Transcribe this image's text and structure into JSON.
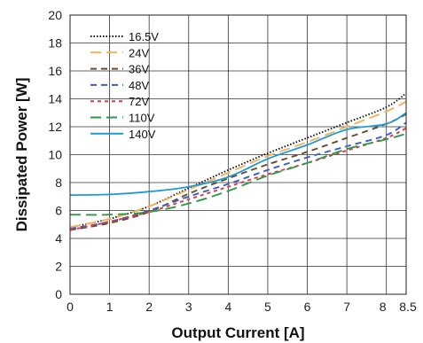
{
  "chart_data": {
    "type": "line",
    "xlabel": "Output Current [A]",
    "ylabel": "Dissipated Power [W]",
    "xlim": [
      0,
      8.5
    ],
    "ylim": [
      0,
      20
    ],
    "x_ticks": [
      {
        "value": 0,
        "label": "0"
      },
      {
        "value": 1,
        "label": "1"
      },
      {
        "value": 2,
        "label": "2"
      },
      {
        "value": 3,
        "label": "3"
      },
      {
        "value": 4,
        "label": "4"
      },
      {
        "value": 5,
        "label": "5"
      },
      {
        "value": 6,
        "label": "6"
      },
      {
        "value": 7,
        "label": "7"
      },
      {
        "value": 8,
        "label": "8"
      },
      {
        "value": 8.5,
        "label": "8.5"
      }
    ],
    "y_ticks": [
      0,
      2,
      4,
      6,
      8,
      10,
      12,
      14,
      16,
      18,
      20
    ],
    "grid": true,
    "legend_position": "top-left",
    "series": [
      {
        "name": "16.5V",
        "color": "#111111",
        "dash": "dotted",
        "x": [
          0,
          1,
          2,
          3,
          4,
          5,
          6,
          7,
          8,
          8.5
        ],
        "y": [
          4.8,
          5.4,
          6.3,
          7.6,
          8.9,
          10.1,
          11.2,
          12.3,
          13.4,
          14.4
        ]
      },
      {
        "name": "24V",
        "color": "#f2b35a",
        "dash": "long-dash",
        "x": [
          0,
          1,
          2,
          3,
          4,
          5,
          6,
          7,
          8,
          8.5
        ],
        "y": [
          4.8,
          5.4,
          6.3,
          7.5,
          8.7,
          9.9,
          10.9,
          12.0,
          13.1,
          13.8
        ]
      },
      {
        "name": "36V",
        "color": "#6b4a2b",
        "dash": "dash",
        "x": [
          0,
          1,
          2,
          3,
          4,
          5,
          6,
          7,
          8,
          8.5
        ],
        "y": [
          4.6,
          5.1,
          5.9,
          7.2,
          8.3,
          9.3,
          10.2,
          11.2,
          12.2,
          12.9
        ]
      },
      {
        "name": "48V",
        "color": "#3a5fc4",
        "dash": "dash",
        "x": [
          0,
          1,
          2,
          3,
          4,
          5,
          6,
          7,
          8,
          8.5
        ],
        "y": [
          4.7,
          5.2,
          6.0,
          7.0,
          7.9,
          8.9,
          9.8,
          10.6,
          11.4,
          12.3
        ]
      },
      {
        "name": "72V",
        "color": "#e2363e",
        "dash": "short-dash",
        "x": [
          0,
          1,
          2,
          3,
          4,
          5,
          6,
          7,
          8,
          8.5
        ],
        "y": [
          4.6,
          5.2,
          5.9,
          6.8,
          7.7,
          8.6,
          9.4,
          10.3,
          11.2,
          11.9
        ]
      },
      {
        "name": "110V",
        "color": "#2d9a4a",
        "dash": "long-dash",
        "x": [
          0,
          1,
          2,
          3,
          4,
          5,
          6,
          7,
          8,
          8.5
        ],
        "y": [
          5.7,
          5.7,
          5.9,
          6.5,
          7.4,
          8.5,
          9.4,
          10.4,
          11.1,
          11.5
        ]
      },
      {
        "name": "140V",
        "color": "#1e9ad6",
        "dash": "solid",
        "x": [
          0,
          1,
          2,
          3,
          4,
          5,
          6,
          7,
          8,
          8.5
        ],
        "y": [
          7.1,
          7.15,
          7.35,
          7.7,
          8.4,
          9.7,
          10.7,
          11.8,
          12.2,
          13.0
        ]
      }
    ]
  }
}
